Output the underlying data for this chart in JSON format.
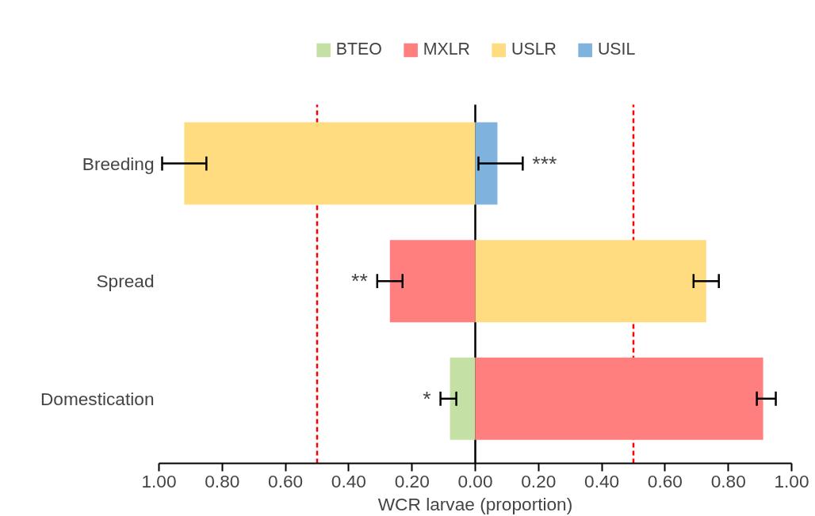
{
  "chart_data": {
    "type": "bar",
    "orientation": "horizontal",
    "xlabel": "WCR larvae (proportion)",
    "categories": [
      "Breeding",
      "Spread",
      "Domestication"
    ],
    "series": [
      {
        "name": "BTEO",
        "color": "#c5e0a5",
        "values": [
          null,
          null,
          -0.08
        ],
        "errors": [
          null,
          null,
          [
            -0.11,
            -0.06
          ]
        ]
      },
      {
        "name": "MXLR",
        "color": "#ff7f7f",
        "values": [
          null,
          -0.27,
          0.91
        ],
        "errors": [
          null,
          [
            -0.31,
            -0.23
          ],
          [
            0.89,
            0.95
          ]
        ]
      },
      {
        "name": "USLR",
        "color": "#ffdc7f",
        "values": [
          -0.92,
          0.73,
          null
        ],
        "errors": [
          [
            -0.99,
            -0.85
          ],
          [
            0.69,
            0.77
          ],
          null
        ]
      },
      {
        "name": "USIL",
        "color": "#7fb3de",
        "values": [
          0.07,
          null,
          null
        ],
        "errors": [
          [
            0.01,
            0.15
          ],
          null,
          null
        ]
      }
    ],
    "xlim": [
      -1,
      1
    ],
    "xticks": [
      {
        "value": -1,
        "label": "1.00"
      },
      {
        "value": -0.8,
        "label": "0.80"
      },
      {
        "value": -0.6,
        "label": "0.60"
      },
      {
        "value": -0.4,
        "label": "0.40"
      },
      {
        "value": -0.2,
        "label": "0.20"
      },
      {
        "value": 0,
        "label": "0.00"
      },
      {
        "value": 0.2,
        "label": "0.20"
      },
      {
        "value": 0.4,
        "label": "0.40"
      },
      {
        "value": 0.6,
        "label": "0.60"
      },
      {
        "value": 0.8,
        "label": "0.80"
      },
      {
        "value": 1,
        "label": "1.00"
      }
    ],
    "annotations": [
      "***",
      "**",
      "*"
    ],
    "ref_lines": [
      {
        "axis": "x",
        "value": -0.5,
        "color": "#ff0000",
        "line_style": "dashed"
      },
      {
        "axis": "x",
        "value": 0.5,
        "color": "#ff0000",
        "line_style": "dashed"
      },
      {
        "axis": "x",
        "value": 0,
        "color": "#000000",
        "line_style": "solid"
      }
    ],
    "stacked": true,
    "legend": "top",
    "grid": false
  }
}
